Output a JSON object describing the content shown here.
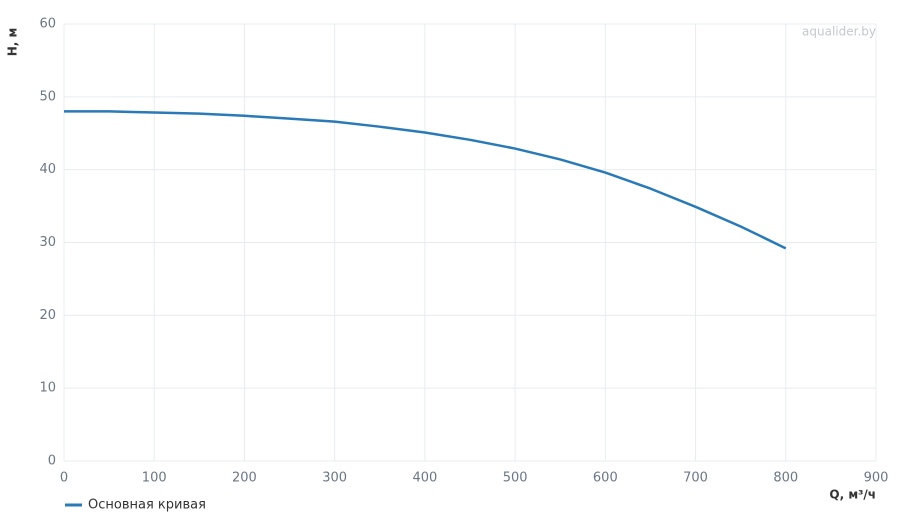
{
  "chart_data": {
    "type": "line",
    "watermark": "aqualider.by",
    "x_label": "Q, м³/ч",
    "y_label": "H, м",
    "x": [
      0,
      50,
      100,
      150,
      200,
      250,
      300,
      350,
      400,
      450,
      500,
      550,
      600,
      650,
      700,
      750,
      800
    ],
    "series": [
      {
        "name": "Основная кривая",
        "color": "#2a7ab8",
        "values": [
          48,
          48,
          47.85,
          47.7,
          47.4,
          47.0,
          46.6,
          45.9,
          45.1,
          44.1,
          42.9,
          41.4,
          39.6,
          37.4,
          34.9,
          32.2,
          29.2
        ]
      }
    ],
    "xlim": [
      0,
      900
    ],
    "xticks": [
      0,
      100,
      200,
      300,
      400,
      500,
      600,
      700,
      800,
      900
    ],
    "ylim": [
      0,
      60
    ],
    "yticks": [
      0,
      10,
      20,
      30,
      40,
      50,
      60
    ],
    "grid": true
  }
}
